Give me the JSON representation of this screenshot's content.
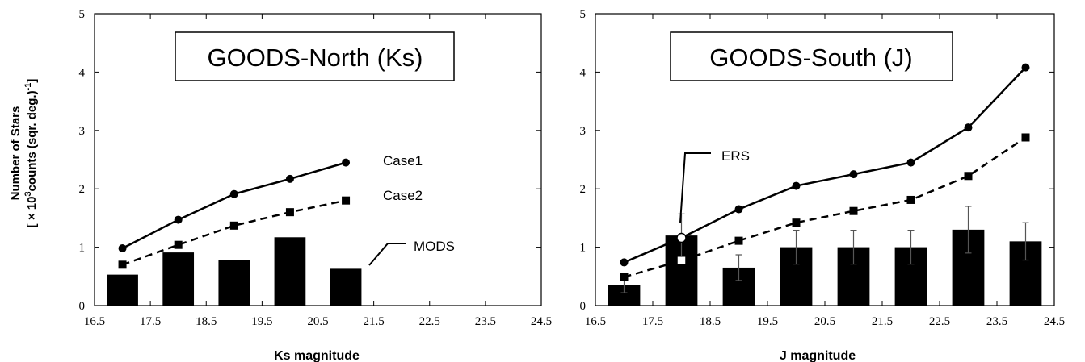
{
  "ylabel_line1": "Number of Stars",
  "ylabel_line2_pre": "[ × 10",
  "ylabel_sup3": "3",
  "ylabel_line2_mid": "counts  (sqr. deg.)",
  "ylabel_sup_neg1": "-1",
  "ylabel_line2_post": "]",
  "chart_data": [
    {
      "type": "bar",
      "title": "GOODS-North (Ks)",
      "xlabel": "Ks magnitude",
      "ylabel": "Number of Stars [ × 10³counts (sqr. deg.)⁻¹]",
      "xlim": [
        16.5,
        24.5
      ],
      "ylim": [
        0,
        5
      ],
      "xticks": [
        "16.5",
        "17.5",
        "18.5",
        "19.5",
        "20.5",
        "21.5",
        "22.5",
        "23.5",
        "24.5"
      ],
      "yticks": [
        "0",
        "1",
        "2",
        "3",
        "4",
        "5"
      ],
      "bars": {
        "name": "MODS",
        "x": [
          17,
          18,
          19,
          20,
          21
        ],
        "values": [
          0.53,
          0.91,
          0.78,
          1.17,
          0.63
        ]
      },
      "series": [
        {
          "name": "Case1",
          "style": "solid",
          "marker": "circle",
          "x": [
            17,
            18,
            19,
            20,
            21
          ],
          "values": [
            0.98,
            1.47,
            1.91,
            2.17,
            2.45
          ]
        },
        {
          "name": "Case2",
          "style": "dashed",
          "marker": "square",
          "x": [
            17,
            18,
            19,
            20,
            21
          ],
          "values": [
            0.7,
            1.04,
            1.37,
            1.6,
            1.8
          ]
        }
      ],
      "annotations": [
        "Case1",
        "Case2",
        "MODS"
      ]
    },
    {
      "type": "bar",
      "title": "GOODS-South (J)",
      "xlabel": "J magnitude",
      "ylabel": "Number of Stars [ × 10³counts (sqr. deg.)⁻¹]",
      "xlim": [
        16.5,
        24.5
      ],
      "ylim": [
        0,
        5
      ],
      "xticks": [
        "16.5",
        "17.5",
        "18.5",
        "19.5",
        "20.5",
        "21.5",
        "22.5",
        "23.5",
        "24.5"
      ],
      "yticks": [
        "0",
        "1",
        "2",
        "3",
        "4",
        "5"
      ],
      "bars": {
        "name": "ERS",
        "x": [
          17,
          18,
          19,
          20,
          21,
          22,
          23,
          24
        ],
        "values": [
          0.35,
          1.2,
          0.65,
          1.0,
          1.0,
          1.0,
          1.3,
          1.1
        ],
        "err": [
          0.13,
          0.37,
          0.22,
          0.29,
          0.29,
          0.29,
          0.4,
          0.32
        ]
      },
      "series": [
        {
          "name": "Case1",
          "style": "solid",
          "marker": "circle",
          "x": [
            17,
            18,
            19,
            20,
            21,
            22,
            23,
            24
          ],
          "values": [
            0.74,
            1.16,
            1.65,
            2.05,
            2.25,
            2.45,
            3.05,
            4.08
          ]
        },
        {
          "name": "Case2",
          "style": "dashed",
          "marker": "square",
          "x": [
            17,
            18,
            19,
            20,
            21,
            22,
            23,
            24
          ],
          "values": [
            0.49,
            0.77,
            1.11,
            1.42,
            1.62,
            1.81,
            2.22,
            2.88
          ]
        }
      ],
      "annotations": [
        "ERS"
      ]
    }
  ]
}
